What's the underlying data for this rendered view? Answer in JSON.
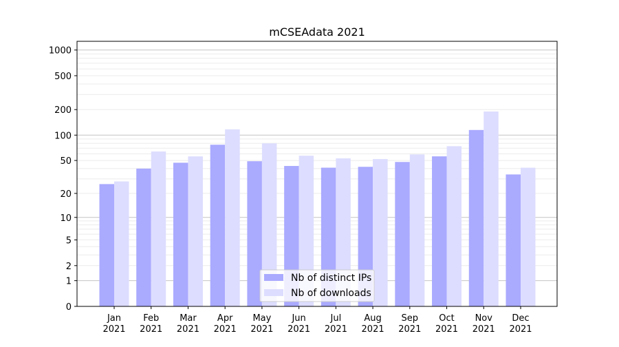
{
  "chart_data": {
    "type": "bar",
    "title": "mCSEAdata 2021",
    "xlabel": "",
    "ylabel": "",
    "yscale": "log10(x+1)",
    "ylim": [
      0,
      1200
    ],
    "yticks": [
      0,
      1,
      2,
      5,
      10,
      20,
      50,
      100,
      200,
      500,
      1000
    ],
    "categories": [
      "Jan\n2021",
      "Feb\n2021",
      "Mar\n2021",
      "Apr\n2021",
      "May\n2021",
      "Jun\n2021",
      "Jul\n2021",
      "Aug\n2021",
      "Sep\n2021",
      "Oct\n2021",
      "Nov\n2021",
      "Dec\n2021"
    ],
    "series": [
      {
        "name": "Nb of distinct IPs",
        "color": "#aaaaff",
        "values": [
          26,
          40,
          47,
          77,
          49,
          43,
          41,
          42,
          48,
          56,
          115,
          34
        ]
      },
      {
        "name": "Nb of downloads",
        "color": "#ddddff",
        "values": [
          28,
          64,
          56,
          117,
          80,
          57,
          53,
          52,
          59,
          74,
          190,
          41
        ]
      }
    ],
    "legend": "lower-center",
    "grid": true
  }
}
